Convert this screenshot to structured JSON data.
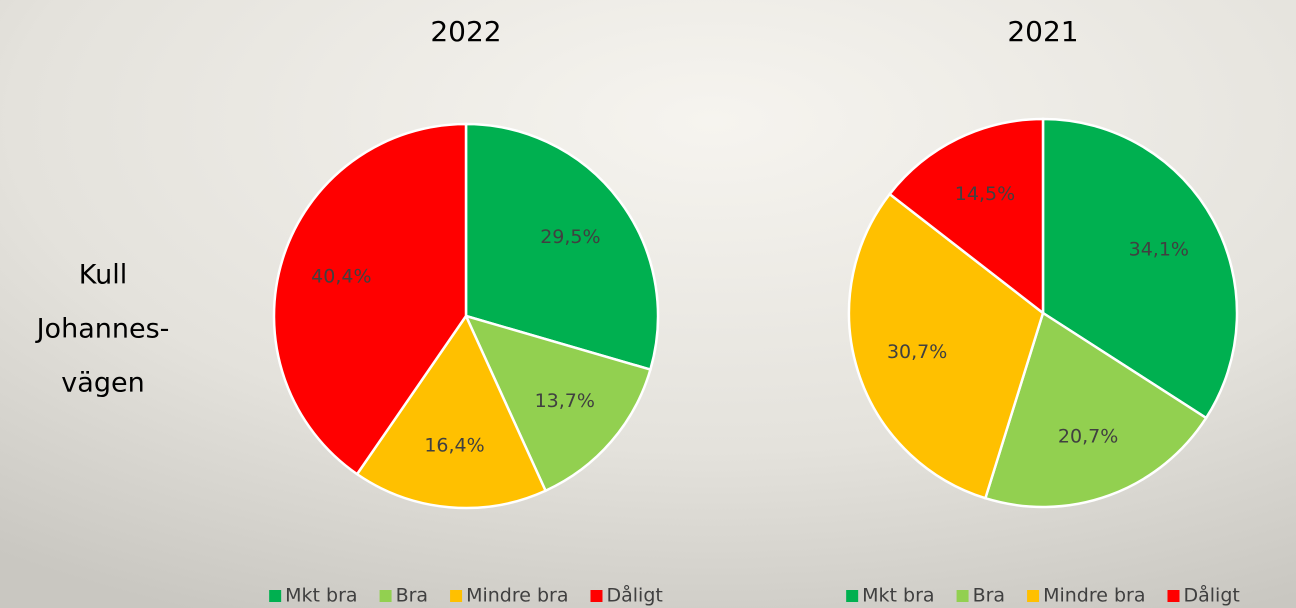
{
  "row_label": [
    "Kull",
    "Johannes-",
    "vägen"
  ],
  "chart_data": [
    {
      "type": "pie",
      "title": "2022",
      "categories": [
        "Mkt bra",
        "Bra",
        "Mindre bra",
        "Dåligt"
      ],
      "colors": [
        "#00B050",
        "#92D050",
        "#FFC000",
        "#FF0000"
      ],
      "values": [
        29.5,
        13.7,
        16.4,
        40.4
      ],
      "value_labels": [
        "29,5%",
        "13,7%",
        "16,4%",
        "40,4%"
      ],
      "legend": "bottom"
    },
    {
      "type": "pie",
      "title": "2021",
      "categories": [
        "Mkt bra",
        "Bra",
        "Mindre bra",
        "Dåligt"
      ],
      "colors": [
        "#00B050",
        "#92D050",
        "#FFC000",
        "#FF0000"
      ],
      "values": [
        34.1,
        20.7,
        30.7,
        14.5
      ],
      "value_labels": [
        "34,1%",
        "20,7%",
        "30,7%",
        "14,5%"
      ],
      "legend": "bottom"
    }
  ]
}
